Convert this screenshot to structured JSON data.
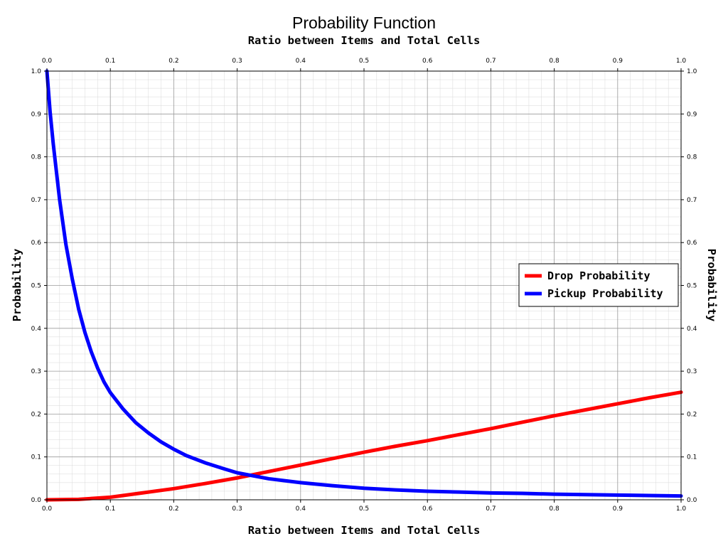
{
  "chart_data": {
    "type": "line",
    "title": "Probability Function",
    "xlabel": "Ratio between Items and Total Cells",
    "xlabel_top": "Ratio between Items and Total Cells",
    "ylabel": "Probability",
    "ylabel_right": "Probability",
    "xlim": [
      0,
      1
    ],
    "ylim": [
      0,
      1
    ],
    "x_ticks": [
      "0.0",
      "0.1",
      "0.2",
      "0.3",
      "0.4",
      "0.5",
      "0.6",
      "0.7",
      "0.8",
      "0.9",
      "1.0"
    ],
    "y_ticks": [
      "0.0",
      "0.1",
      "0.2",
      "0.3",
      "0.4",
      "0.5",
      "0.6",
      "0.7",
      "0.8",
      "0.9",
      "1.0"
    ],
    "grid": true,
    "minor_grid": true,
    "legend_position": "center-right",
    "series": [
      {
        "name": "Drop Probability",
        "color": "#ff0000",
        "x": [
          0.0,
          0.05,
          0.1,
          0.15,
          0.2,
          0.25,
          0.3,
          0.35,
          0.4,
          0.45,
          0.5,
          0.55,
          0.6,
          0.65,
          0.7,
          0.75,
          0.8,
          0.85,
          0.9,
          0.95,
          1.0
        ],
        "y": [
          0.0,
          0.001,
          0.006,
          0.016,
          0.026,
          0.038,
          0.051,
          0.066,
          0.081,
          0.096,
          0.111,
          0.125,
          0.138,
          0.152,
          0.166,
          0.181,
          0.196,
          0.21,
          0.224,
          0.238,
          0.251
        ]
      },
      {
        "name": "Pickup Probability",
        "color": "#0000ff",
        "x": [
          0.0,
          0.005,
          0.01,
          0.02,
          0.03,
          0.04,
          0.05,
          0.06,
          0.07,
          0.08,
          0.09,
          0.1,
          0.12,
          0.14,
          0.16,
          0.18,
          0.2,
          0.22,
          0.25,
          0.28,
          0.3,
          0.35,
          0.4,
          0.45,
          0.5,
          0.55,
          0.6,
          0.65,
          0.7,
          0.75,
          0.8,
          0.85,
          0.9,
          0.95,
          1.0
        ],
        "y": [
          1.0,
          0.905,
          0.83,
          0.7,
          0.595,
          0.515,
          0.445,
          0.39,
          0.345,
          0.307,
          0.275,
          0.25,
          0.212,
          0.18,
          0.156,
          0.135,
          0.118,
          0.103,
          0.086,
          0.072,
          0.063,
          0.049,
          0.04,
          0.033,
          0.027,
          0.023,
          0.02,
          0.018,
          0.016,
          0.015,
          0.013,
          0.012,
          0.011,
          0.01,
          0.009
        ]
      }
    ]
  }
}
